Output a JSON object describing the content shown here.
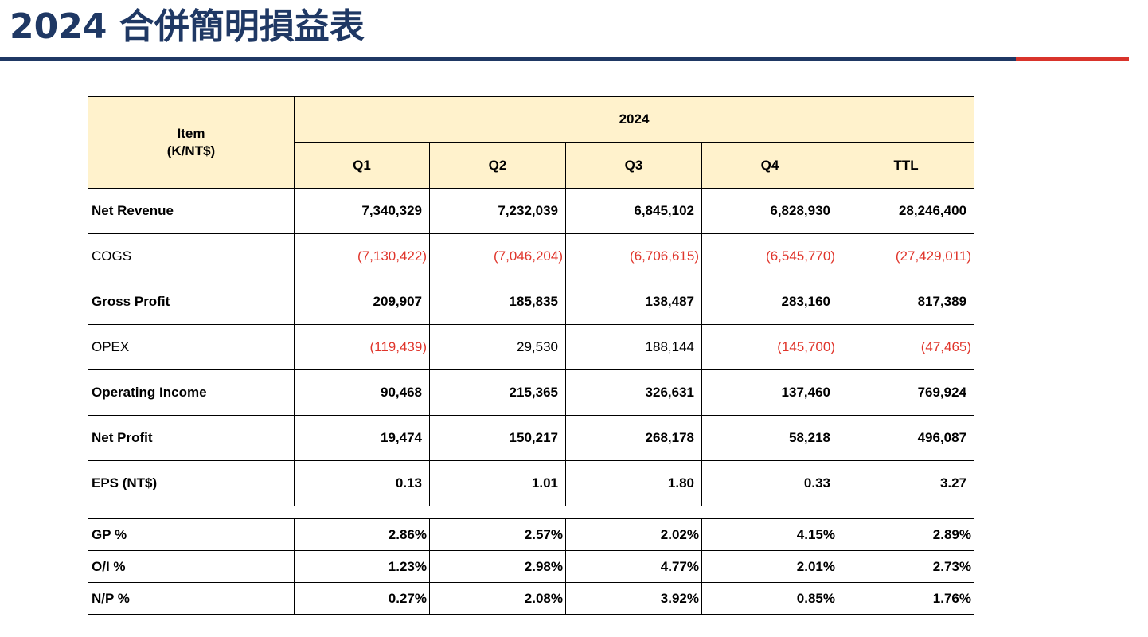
{
  "header": {
    "title": "2024 合併簡明損益表"
  },
  "table": {
    "item_label": "Item",
    "unit_label": "(K/NT$)",
    "year": "2024",
    "columns": [
      "Q1",
      "Q2",
      "Q3",
      "Q4",
      "TTL"
    ],
    "rows": [
      {
        "label": "Net Revenue",
        "bold": true,
        "values": [
          "7,340,329",
          "7,232,039",
          "6,845,102",
          "6,828,930",
          "28,246,400"
        ]
      },
      {
        "label": "COGS",
        "bold": false,
        "values": [
          "(7,130,422)",
          "(7,046,204)",
          "(6,706,615)",
          "(6,545,770)",
          "(27,429,011)"
        ]
      },
      {
        "label": "Gross Profit",
        "bold": true,
        "values": [
          "209,907",
          "185,835",
          "138,487",
          "283,160",
          "817,389"
        ]
      },
      {
        "label": "OPEX",
        "bold": false,
        "values": [
          "(119,439)",
          "29,530",
          "188,144",
          "(145,700)",
          "(47,465)"
        ]
      },
      {
        "label": "Operating Income",
        "bold": true,
        "values": [
          "90,468",
          "215,365",
          "326,631",
          "137,460",
          "769,924"
        ]
      },
      {
        "label": "Net Profit",
        "bold": true,
        "values": [
          "19,474",
          "150,217",
          "268,178",
          "58,218",
          "496,087"
        ]
      },
      {
        "label": "EPS (NT$)",
        "bold": true,
        "values": [
          "0.13",
          "1.01",
          "1.80",
          "0.33",
          "3.27"
        ]
      }
    ]
  },
  "ratios": {
    "rows": [
      {
        "label": "GP %",
        "values": [
          "2.86%",
          "2.57%",
          "2.02%",
          "4.15%",
          "2.89%"
        ]
      },
      {
        "label": "O/I %",
        "values": [
          "1.23%",
          "2.98%",
          "4.77%",
          "2.01%",
          "2.73%"
        ]
      },
      {
        "label": "N/P %",
        "values": [
          "0.27%",
          "2.08%",
          "3.92%",
          "0.85%",
          "1.76%"
        ]
      }
    ]
  },
  "colors": {
    "title": "#1f3864",
    "accent_red": "#d9342b",
    "header_fill": "#fff2cc",
    "negative": "#e0352b"
  }
}
